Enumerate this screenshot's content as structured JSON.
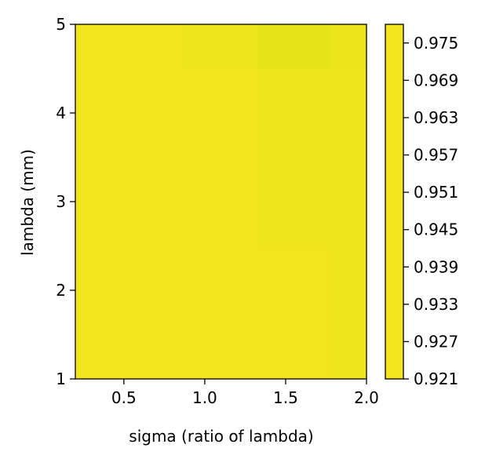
{
  "chart_data": {
    "type": "heatmap",
    "title": "",
    "xlabel": "sigma (ratio of lambda)",
    "ylabel": "lambda (mm)",
    "xlim": [
      0.2,
      2.0
    ],
    "ylim": [
      1,
      5
    ],
    "x_ticks": [
      "0.5",
      "1.0",
      "1.5",
      "2.0"
    ],
    "y_ticks": [
      "1",
      "2",
      "3",
      "4",
      "5"
    ],
    "grid": false,
    "colorbar": {
      "range": [
        0.921,
        0.978
      ],
      "ticks": [
        "0.921",
        "0.927",
        "0.933",
        "0.939",
        "0.945",
        "0.951",
        "0.957",
        "0.963",
        "0.969",
        "0.975"
      ]
    },
    "x": [
      0.2,
      0.65,
      1.1,
      1.55,
      2.0
    ],
    "y": [
      1,
      2,
      3,
      4,
      5
    ],
    "z": [
      [
        0.975,
        0.975,
        0.975,
        0.975,
        0.974
      ],
      [
        0.975,
        0.975,
        0.975,
        0.975,
        0.974
      ],
      [
        0.975,
        0.975,
        0.975,
        0.974,
        0.974
      ],
      [
        0.975,
        0.975,
        0.975,
        0.974,
        0.974
      ],
      [
        0.975,
        0.975,
        0.974,
        0.972,
        0.973
      ]
    ],
    "colors": {
      "high": "#e6e419",
      "plateau": "#f2e51d",
      "low": "#fde725"
    }
  }
}
